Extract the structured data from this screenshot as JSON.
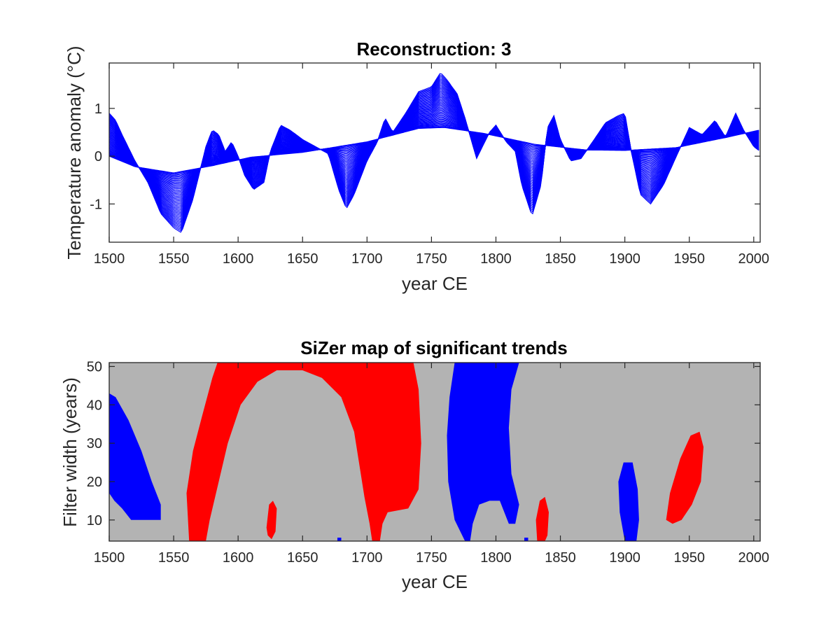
{
  "chart_data": [
    {
      "type": "line",
      "title": "Reconstruction: 3",
      "xlabel": "year CE",
      "ylabel": "Temperature anomaly (°C)",
      "xlim": [
        1500,
        2005
      ],
      "ylim": [
        -1.8,
        1.95
      ],
      "xticks": [
        "1500",
        "1550",
        "1600",
        "1650",
        "1700",
        "1750",
        "1800",
        "1850",
        "1900",
        "1950",
        "2000"
      ],
      "yticks": [
        "-1",
        "0",
        "1"
      ],
      "xtick_values": [
        1500,
        1550,
        1600,
        1650,
        1700,
        1750,
        1800,
        1850,
        1900,
        1950,
        2000
      ],
      "ytick_values": [
        -1,
        0,
        1
      ],
      "series_color": "#0000ff",
      "description": "family of smoothed curves at filter widths 5 to 50 years",
      "smooth_baseline": {
        "x": [
          1500,
          1520,
          1550,
          1580,
          1610,
          1650,
          1700,
          1740,
          1760,
          1790,
          1830,
          1870,
          1900,
          1940,
          1980,
          2005
        ],
        "y": [
          0.0,
          -0.22,
          -0.35,
          -0.2,
          -0.02,
          0.08,
          0.3,
          0.58,
          0.6,
          0.48,
          0.25,
          0.13,
          0.12,
          0.18,
          0.4,
          0.55
        ]
      },
      "narrowest_filter_curve": {
        "x": [
          1500,
          1505,
          1510,
          1520,
          1530,
          1540,
          1550,
          1556,
          1565,
          1575,
          1580,
          1585,
          1590,
          1595,
          1600,
          1605,
          1612,
          1620,
          1625,
          1633,
          1640,
          1650,
          1660,
          1670,
          1678,
          1684,
          1690,
          1700,
          1708,
          1714,
          1720,
          1730,
          1740,
          1750,
          1757,
          1762,
          1770,
          1776,
          1785,
          1795,
          1800,
          1808,
          1815,
          1820,
          1828,
          1835,
          1840,
          1845,
          1850,
          1858,
          1866,
          1875,
          1885,
          1895,
          1900,
          1905,
          1912,
          1920,
          1930,
          1940,
          1950,
          1960,
          1970,
          1978,
          1986,
          1992,
          2000,
          2005
        ],
        "y": [
          0.9,
          0.75,
          0.45,
          -0.1,
          -0.55,
          -1.2,
          -1.5,
          -1.6,
          -0.9,
          0.2,
          0.55,
          0.45,
          0.1,
          0.3,
          0.0,
          -0.4,
          -0.7,
          -0.55,
          0.1,
          0.65,
          0.55,
          0.35,
          0.2,
          0.05,
          -0.7,
          -1.1,
          -0.8,
          -0.1,
          0.3,
          0.8,
          0.5,
          0.9,
          1.35,
          1.45,
          1.75,
          1.6,
          1.3,
          0.8,
          -0.05,
          0.5,
          0.65,
          0.3,
          0.1,
          -0.6,
          -1.25,
          -0.6,
          0.6,
          0.85,
          0.35,
          -0.1,
          -0.05,
          0.3,
          0.7,
          0.85,
          0.9,
          0.1,
          -0.8,
          -1.0,
          -0.6,
          0.0,
          0.6,
          0.45,
          0.75,
          0.4,
          0.9,
          0.55,
          0.2,
          0.1
        ]
      }
    },
    {
      "type": "heatmap",
      "title": "SiZer map of significant trends",
      "xlabel": "year CE",
      "ylabel": "Filter width (years)",
      "xlim": [
        1500,
        2005
      ],
      "ylim": [
        4.5,
        51
      ],
      "xticks": [
        "1500",
        "1550",
        "1600",
        "1650",
        "1700",
        "1750",
        "1800",
        "1850",
        "1900",
        "1950",
        "2000"
      ],
      "yticks": [
        "10",
        "20",
        "30",
        "40",
        "50"
      ],
      "xtick_values": [
        1500,
        1550,
        1600,
        1650,
        1700,
        1750,
        1800,
        1850,
        1900,
        1950,
        2000
      ],
      "ytick_values": [
        10,
        20,
        30,
        40,
        50
      ],
      "colors": {
        "background": "#b3b3b3",
        "increasing": "#ff0000",
        "decreasing": "#0000ff"
      },
      "regions": [
        {
          "trend": "decreasing",
          "outline": [
            [
              1500,
              43
            ],
            [
              1505,
              42
            ],
            [
              1515,
              36
            ],
            [
              1525,
              28
            ],
            [
              1533,
              20
            ],
            [
              1540,
              14
            ],
            [
              1540,
              10
            ],
            [
              1517,
              10
            ],
            [
              1510,
              13
            ],
            [
              1504,
              15
            ],
            [
              1500,
              17
            ]
          ]
        },
        {
          "trend": "increasing",
          "outline": [
            [
              1562,
              4.5
            ],
            [
              1560,
              17
            ],
            [
              1565,
              28
            ],
            [
              1572,
              37
            ],
            [
              1580,
              47
            ],
            [
              1584,
              51
            ],
            [
              1736,
              51
            ],
            [
              1740,
              44
            ],
            [
              1742,
              30
            ],
            [
              1740,
              18
            ],
            [
              1732,
              13
            ],
            [
              1716,
              12
            ],
            [
              1712,
              9
            ],
            [
              1710,
              4.5
            ],
            [
              1704,
              4.5
            ],
            [
              1702,
              9
            ],
            [
              1698,
              16
            ],
            [
              1690,
              33
            ],
            [
              1680,
              42
            ],
            [
              1665,
              47
            ],
            [
              1650,
              49
            ],
            [
              1630,
              49
            ],
            [
              1615,
              46
            ],
            [
              1602,
              40
            ],
            [
              1592,
              30
            ],
            [
              1585,
              20
            ],
            [
              1578,
              10
            ],
            [
              1575,
              4.5
            ]
          ]
        },
        {
          "trend": "increasing",
          "outline": [
            [
              1622,
              8
            ],
            [
              1624,
              14
            ],
            [
              1627,
              15
            ],
            [
              1630,
              13
            ],
            [
              1629,
              7
            ],
            [
              1626,
              5
            ],
            [
              1623,
              6
            ]
          ]
        },
        {
          "trend": "decreasing",
          "outline": [
            [
              1776,
              4.5
            ],
            [
              1768,
              10
            ],
            [
              1763,
              20
            ],
            [
              1762,
              32
            ],
            [
              1764,
              42
            ],
            [
              1768,
              51
            ],
            [
              1818,
              51
            ],
            [
              1812,
              44
            ],
            [
              1810,
              34
            ],
            [
              1812,
              22
            ],
            [
              1818,
              14
            ],
            [
              1815,
              9
            ],
            [
              1810,
              9
            ],
            [
              1803,
              15
            ],
            [
              1795,
              15
            ],
            [
              1787,
              14
            ],
            [
              1782,
              9
            ],
            [
              1780,
              4.5
            ]
          ]
        },
        {
          "trend": "increasing",
          "outline": [
            [
              1832,
              4.5
            ],
            [
              1831,
              10
            ],
            [
              1834,
              15
            ],
            [
              1838,
              16
            ],
            [
              1841,
              12
            ],
            [
              1840,
              6
            ],
            [
              1838,
              4.5
            ]
          ]
        },
        {
          "trend": "decreasing",
          "outline": [
            [
              1900,
              4.5
            ],
            [
              1896,
              12
            ],
            [
              1895,
              20
            ],
            [
              1899,
              25
            ],
            [
              1906,
              25
            ],
            [
              1910,
              18
            ],
            [
              1911,
              10
            ],
            [
              1909,
              4.5
            ]
          ]
        },
        {
          "trend": "increasing",
          "outline": [
            [
              1932,
              10
            ],
            [
              1935,
              17
            ],
            [
              1943,
              26
            ],
            [
              1951,
              32
            ],
            [
              1958,
              33
            ],
            [
              1961,
              29
            ],
            [
              1959,
              20
            ],
            [
              1952,
              14
            ],
            [
              1944,
              10
            ],
            [
              1937,
              9
            ]
          ]
        },
        {
          "trend": "decreasing",
          "outline": [
            [
              1677,
              4.5
            ],
            [
              1677,
              5.4
            ],
            [
              1680,
              5.4
            ],
            [
              1680,
              4.5
            ]
          ]
        },
        {
          "trend": "decreasing",
          "outline": [
            [
              1822,
              4.5
            ],
            [
              1822,
              5.4
            ],
            [
              1825,
              5.4
            ],
            [
              1825,
              4.5
            ]
          ]
        }
      ]
    }
  ]
}
